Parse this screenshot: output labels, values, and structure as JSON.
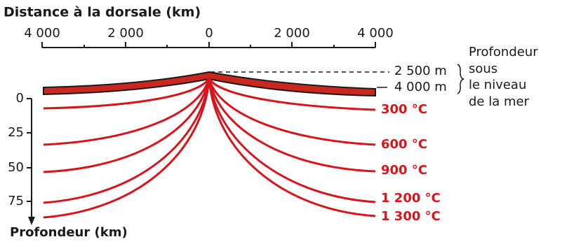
{
  "header": {
    "title": "Distance à la dorsale (km)"
  },
  "top_axis": {
    "ticks": [
      "4 000",
      "2 000",
      "0",
      "2 000",
      "4 000"
    ]
  },
  "left_axis": {
    "ticks": [
      "0",
      "25",
      "50",
      "75"
    ],
    "label": "Profondeur (km)"
  },
  "sea_depths": [
    "2 500 m",
    "4 000 m"
  ],
  "sea_depth_label": [
    "Profondeur",
    "sous",
    "le niveau",
    "de la mer"
  ],
  "isotherms": [
    "300 °C",
    "600 °C",
    "900 °C",
    "1 200 °C",
    "1 300 °C"
  ]
}
